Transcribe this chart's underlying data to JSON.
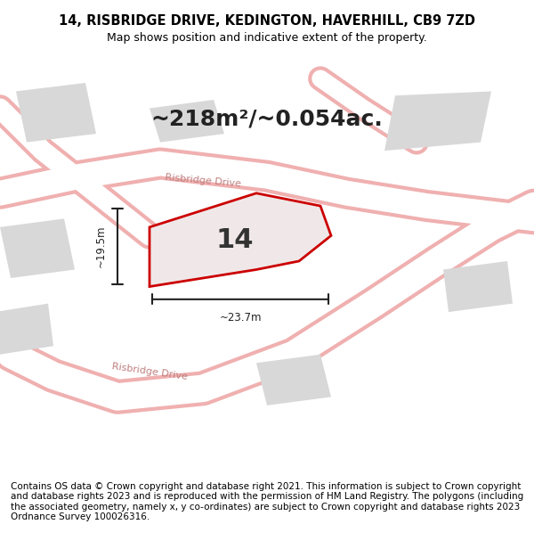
{
  "title": "14, RISBRIDGE DRIVE, KEDINGTON, HAVERHILL, CB9 7ZD",
  "subtitle": "Map shows position and indicative extent of the property.",
  "area_text": "~218m²/~0.054ac.",
  "label_14": "14",
  "dim_width": "~23.7m",
  "dim_height": "~19.5m",
  "footer": "Contains OS data © Crown copyright and database right 2021. This information is subject to Crown copyright and database rights 2023 and is reproduced with the permission of HM Land Registry. The polygons (including the associated geometry, namely x, y co-ordinates) are subject to Crown copyright and database rights 2023 Ordnance Survey 100026316.",
  "bg_color": "#f5f0f0",
  "map_bg": "#f5f0f0",
  "road_color": "#ffffff",
  "building_color": "#d8d8d8",
  "highlight_color": "#e8e8e8",
  "property_fill": "#f0e8e8",
  "property_edge": "#cc0000",
  "road_outline": "#f0b0b0",
  "street_label_color": "#c08080",
  "title_fontsize": 10.5,
  "subtitle_fontsize": 9,
  "area_fontsize": 18,
  "footer_fontsize": 7.5
}
